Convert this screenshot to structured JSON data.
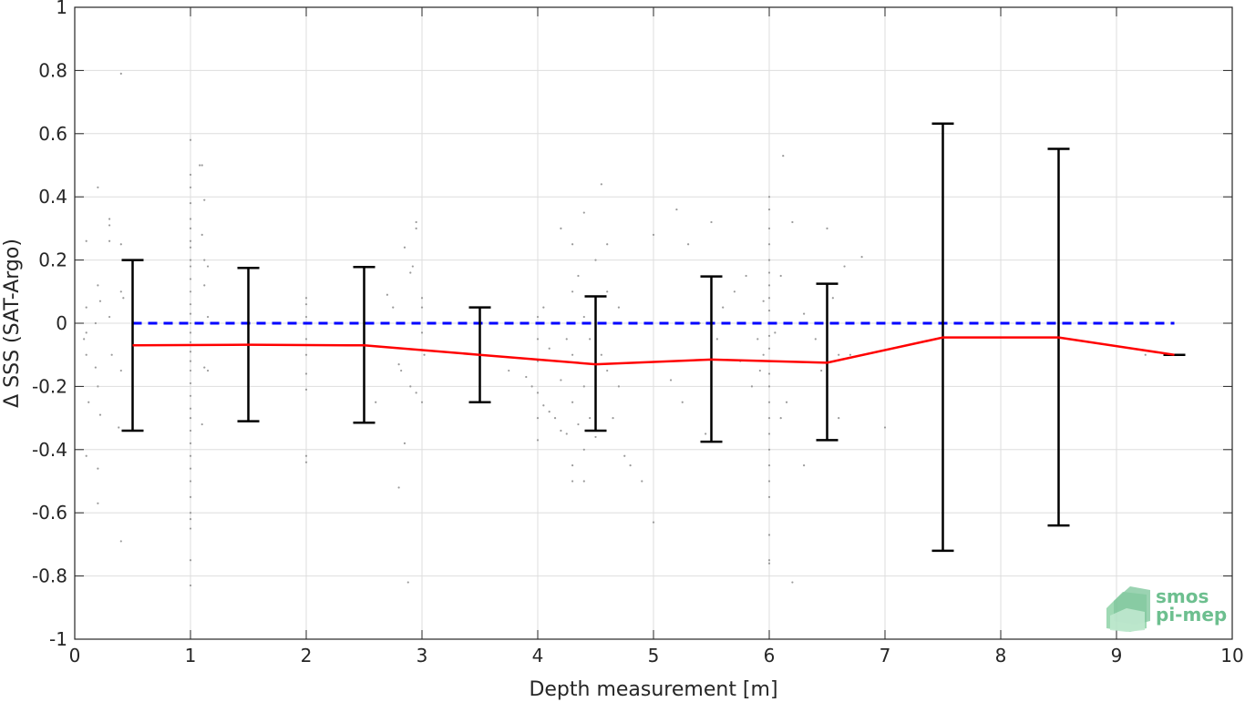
{
  "chart_data": {
    "type": "scatter",
    "xlabel": "Depth measurement [m]",
    "ylabel": "Δ SSS (SAT-Argo)",
    "xlim": [
      0,
      10
    ],
    "ylim": [
      -1,
      1
    ],
    "xticks": [
      0,
      1,
      2,
      3,
      4,
      5,
      6,
      7,
      8,
      9,
      10
    ],
    "xtick_labels": [
      "0",
      "1",
      "2",
      "3",
      "4",
      "5",
      "6",
      "7",
      "8",
      "9",
      "10"
    ],
    "yticks": [
      -1,
      -0.8,
      -0.6,
      -0.4,
      -0.2,
      0,
      0.2,
      0.4,
      0.6,
      0.8,
      1
    ],
    "ytick_labels": [
      "-1",
      "-0.8",
      "-0.6",
      "-0.4",
      "-0.2",
      "0",
      "0.2",
      "0.4",
      "0.6",
      "0.8",
      "1"
    ],
    "grid": true,
    "series": [
      {
        "type": "line",
        "style": "dashed",
        "color": "#0000ff",
        "x": [
          0.5,
          9.5
        ],
        "y": [
          0,
          0
        ]
      },
      {
        "type": "errorbar",
        "color": "#000000",
        "x": [
          0.5,
          1.5,
          2.5,
          3.5,
          4.5,
          5.5,
          6.5,
          7.5,
          8.5,
          9.5
        ],
        "lower": [
          -0.34,
          -0.31,
          -0.315,
          -0.25,
          -0.34,
          -0.375,
          -0.37,
          -0.72,
          -0.64,
          -0.1
        ],
        "upper": [
          0.2,
          0.175,
          0.178,
          0.05,
          0.085,
          0.148,
          0.125,
          0.632,
          0.552,
          -0.1
        ]
      },
      {
        "type": "line",
        "color": "#ff0000",
        "x": [
          0.5,
          1.5,
          2.5,
          3.5,
          4.5,
          5.5,
          6.5,
          7.5,
          8.5,
          9.5
        ],
        "y": [
          -0.07,
          -0.068,
          -0.07,
          -0.1,
          -0.13,
          -0.115,
          -0.125,
          -0.045,
          -0.045,
          -0.1
        ]
      },
      {
        "type": "scatter",
        "color": "#9a9a9a",
        "points": [
          [
            0.1,
            -0.03
          ],
          [
            0.1,
            -0.1
          ],
          [
            0.1,
            0.05
          ],
          [
            0.1,
            0.26
          ],
          [
            0.1,
            -0.42
          ],
          [
            0.12,
            -0.25
          ],
          [
            0.08,
            -0.05
          ],
          [
            0.2,
            0.43
          ],
          [
            0.2,
            0.12
          ],
          [
            0.2,
            -0.2
          ],
          [
            0.2,
            -0.46
          ],
          [
            0.2,
            -0.57
          ],
          [
            0.22,
            0.07
          ],
          [
            0.22,
            -0.29
          ],
          [
            0.18,
            0.0
          ],
          [
            0.18,
            -0.14
          ],
          [
            0.3,
            0.33
          ],
          [
            0.3,
            0.31
          ],
          [
            0.3,
            0.26
          ],
          [
            0.3,
            0.02
          ],
          [
            0.32,
            -0.1
          ],
          [
            0.4,
            0.79
          ],
          [
            0.4,
            0.25
          ],
          [
            0.4,
            0.1
          ],
          [
            0.4,
            -0.15
          ],
          [
            0.4,
            -0.69
          ],
          [
            0.38,
            -0.33
          ],
          [
            0.42,
            0.08
          ],
          [
            1.0,
            0.58
          ],
          [
            1.0,
            0.47
          ],
          [
            1.0,
            0.43
          ],
          [
            1.0,
            0.38
          ],
          [
            1.0,
            0.33
          ],
          [
            1.0,
            0.3
          ],
          [
            1.0,
            0.26
          ],
          [
            1.0,
            0.24
          ],
          [
            1.0,
            0.2
          ],
          [
            1.0,
            0.18
          ],
          [
            1.0,
            0.14
          ],
          [
            1.0,
            0.1
          ],
          [
            1.0,
            0.06
          ],
          [
            1.0,
            0.03
          ],
          [
            1.0,
            0.0
          ],
          [
            1.0,
            -0.03
          ],
          [
            1.0,
            -0.06
          ],
          [
            1.0,
            -0.09
          ],
          [
            1.0,
            -0.12
          ],
          [
            1.0,
            -0.15
          ],
          [
            1.0,
            -0.19
          ],
          [
            1.0,
            -0.23
          ],
          [
            1.0,
            -0.27
          ],
          [
            1.0,
            -0.3
          ],
          [
            1.0,
            -0.34
          ],
          [
            1.0,
            -0.38
          ],
          [
            1.0,
            -0.42
          ],
          [
            1.0,
            -0.46
          ],
          [
            1.0,
            -0.5
          ],
          [
            1.0,
            -0.55
          ],
          [
            1.0,
            -0.6
          ],
          [
            1.0,
            -0.62
          ],
          [
            1.0,
            -0.65
          ],
          [
            1.0,
            -0.75
          ],
          [
            1.0,
            -0.83
          ],
          [
            1.08,
            0.5
          ],
          [
            1.1,
            0.5
          ],
          [
            1.12,
            0.39
          ],
          [
            1.1,
            0.28
          ],
          [
            1.12,
            0.2
          ],
          [
            1.15,
            0.18
          ],
          [
            1.12,
            0.12
          ],
          [
            1.15,
            0.02
          ],
          [
            1.12,
            -0.14
          ],
          [
            1.15,
            -0.15
          ],
          [
            1.1,
            -0.32
          ],
          [
            2.0,
            0.08
          ],
          [
            2.0,
            0.06
          ],
          [
            2.0,
            0.02
          ],
          [
            2.0,
            -0.05
          ],
          [
            2.0,
            -0.1
          ],
          [
            2.0,
            -0.16
          ],
          [
            2.0,
            -0.21
          ],
          [
            2.0,
            -0.42
          ],
          [
            2.0,
            -0.44
          ],
          [
            2.6,
            -0.25
          ],
          [
            2.7,
            0.09
          ],
          [
            2.75,
            0.05
          ],
          [
            2.8,
            0.0
          ],
          [
            2.8,
            -0.13
          ],
          [
            2.82,
            -0.15
          ],
          [
            2.85,
            -0.38
          ],
          [
            2.8,
            -0.52
          ],
          [
            2.85,
            0.24
          ],
          [
            2.9,
            0.16
          ],
          [
            2.92,
            0.18
          ],
          [
            2.95,
            0.3
          ],
          [
            2.95,
            0.32
          ],
          [
            2.88,
            -0.82
          ],
          [
            2.9,
            -0.2
          ],
          [
            2.95,
            -0.22
          ],
          [
            3.0,
            0.08
          ],
          [
            3.0,
            0.05
          ],
          [
            3.0,
            -0.03
          ],
          [
            3.02,
            -0.1
          ],
          [
            3.0,
            -0.25
          ],
          [
            3.75,
            -0.15
          ],
          [
            3.9,
            -0.17
          ],
          [
            3.95,
            -0.2
          ],
          [
            4.0,
            0.02
          ],
          [
            4.0,
            -0.05
          ],
          [
            4.0,
            -0.12
          ],
          [
            4.0,
            -0.22
          ],
          [
            4.0,
            -0.3
          ],
          [
            4.0,
            -0.37
          ],
          [
            4.05,
            0.05
          ],
          [
            4.05,
            -0.26
          ],
          [
            4.1,
            -0.08
          ],
          [
            4.1,
            -0.28
          ],
          [
            4.15,
            -0.3
          ],
          [
            4.15,
            0.0
          ],
          [
            4.2,
            0.3
          ],
          [
            4.2,
            -0.18
          ],
          [
            4.2,
            -0.34
          ],
          [
            4.25,
            -0.35
          ],
          [
            4.25,
            -0.05
          ],
          [
            4.3,
            0.25
          ],
          [
            4.3,
            0.1
          ],
          [
            4.3,
            -0.1
          ],
          [
            4.3,
            -0.25
          ],
          [
            4.3,
            -0.45
          ],
          [
            4.3,
            -0.5
          ],
          [
            4.35,
            0.15
          ],
          [
            4.35,
            -0.32
          ],
          [
            4.4,
            0.35
          ],
          [
            4.4,
            0.02
          ],
          [
            4.4,
            -0.2
          ],
          [
            4.4,
            -0.4
          ],
          [
            4.4,
            -0.5
          ],
          [
            4.45,
            -0.05
          ],
          [
            4.45,
            -0.3
          ],
          [
            4.5,
            0.2
          ],
          [
            4.5,
            0.0
          ],
          [
            4.5,
            -0.18
          ],
          [
            4.5,
            -0.36
          ],
          [
            4.55,
            0.44
          ],
          [
            4.55,
            -0.1
          ],
          [
            4.6,
            0.1
          ],
          [
            4.6,
            -0.15
          ],
          [
            4.65,
            -0.3
          ],
          [
            4.7,
            -0.2
          ],
          [
            4.75,
            -0.42
          ],
          [
            4.8,
            -0.45
          ],
          [
            4.9,
            -0.5
          ],
          [
            4.6,
            0.25
          ],
          [
            4.7,
            0.05
          ],
          [
            5.0,
            0.28
          ],
          [
            5.0,
            -0.63
          ],
          [
            5.1,
            0.0
          ],
          [
            5.15,
            -0.18
          ],
          [
            5.2,
            0.36
          ],
          [
            5.25,
            -0.25
          ],
          [
            5.3,
            0.25
          ],
          [
            5.4,
            0.0
          ],
          [
            5.45,
            -0.35
          ],
          [
            5.5,
            0.32
          ],
          [
            5.55,
            -0.05
          ],
          [
            5.6,
            0.05
          ],
          [
            5.7,
            0.1
          ],
          [
            5.75,
            -0.12
          ],
          [
            5.8,
            0.15
          ],
          [
            5.85,
            -0.2
          ],
          [
            5.9,
            -0.05
          ],
          [
            6.0,
            0.4
          ],
          [
            6.0,
            0.36
          ],
          [
            6.0,
            0.3
          ],
          [
            6.0,
            0.25
          ],
          [
            6.0,
            0.2
          ],
          [
            6.0,
            0.16
          ],
          [
            6.0,
            0.12
          ],
          [
            6.0,
            0.08
          ],
          [
            6.0,
            0.04
          ],
          [
            6.0,
            0.0
          ],
          [
            6.0,
            -0.04
          ],
          [
            6.0,
            -0.08
          ],
          [
            6.0,
            -0.12
          ],
          [
            6.0,
            -0.16
          ],
          [
            6.0,
            -0.2
          ],
          [
            6.0,
            -0.25
          ],
          [
            6.0,
            -0.3
          ],
          [
            6.0,
            -0.35
          ],
          [
            6.0,
            -0.4
          ],
          [
            6.0,
            -0.45
          ],
          [
            6.0,
            -0.5
          ],
          [
            6.0,
            -0.55
          ],
          [
            6.0,
            -0.67
          ],
          [
            6.0,
            -0.75
          ],
          [
            6.0,
            -0.76
          ],
          [
            5.95,
            0.07
          ],
          [
            5.95,
            -0.1
          ],
          [
            5.92,
            -0.15
          ],
          [
            6.05,
            -0.03
          ],
          [
            6.1,
            0.15
          ],
          [
            6.1,
            -0.3
          ],
          [
            6.12,
            0.53
          ],
          [
            6.15,
            0.0
          ],
          [
            6.15,
            -0.25
          ],
          [
            6.2,
            0.32
          ],
          [
            6.2,
            -0.82
          ],
          [
            6.3,
            -0.45
          ],
          [
            6.3,
            0.03
          ],
          [
            6.4,
            0.0
          ],
          [
            6.4,
            -0.05
          ],
          [
            6.45,
            -0.15
          ],
          [
            6.5,
            0.3
          ],
          [
            6.5,
            -0.2
          ],
          [
            6.5,
            -0.25
          ],
          [
            6.55,
            0.08
          ],
          [
            6.6,
            -0.1
          ],
          [
            6.6,
            -0.3
          ],
          [
            6.65,
            0.18
          ],
          [
            6.7,
            -0.1
          ],
          [
            6.8,
            0.21
          ],
          [
            7.0,
            -0.33
          ],
          [
            9.25,
            -0.1
          ]
        ]
      }
    ]
  },
  "logo": {
    "line1": "smos",
    "line2": "pi-mep"
  },
  "colors": {
    "axis": "#262626",
    "grid": "#dedede",
    "errorbar": "#000000",
    "mean_line": "#ff0000",
    "reference_line": "#0000ff",
    "scatter": "#9a9a9a",
    "logo": "#6dbf8f"
  }
}
